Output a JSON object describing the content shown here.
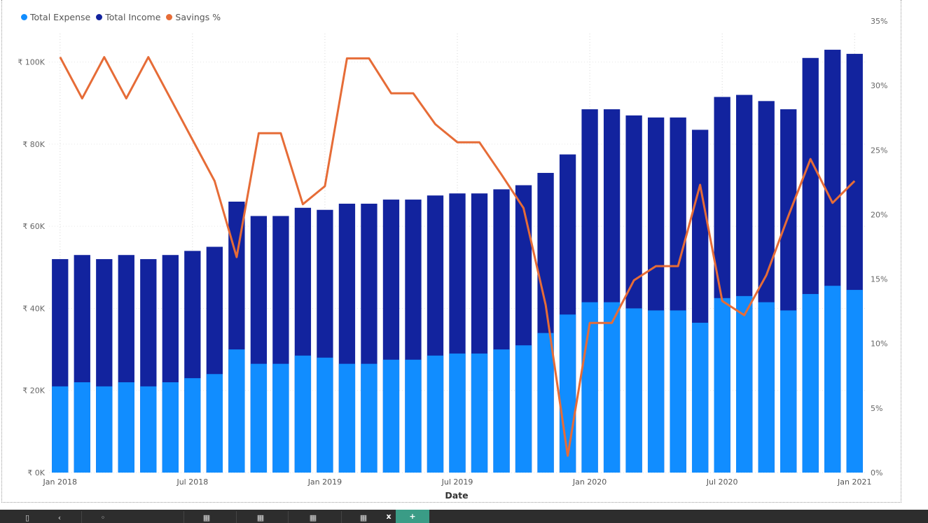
{
  "legend": {
    "items": [
      {
        "label": "Total Expense",
        "color": "#118dff"
      },
      {
        "label": "Total Income",
        "color": "#12239e"
      },
      {
        "label": "Savings %",
        "color": "#e66c37"
      }
    ]
  },
  "chart_data": {
    "type": "bar",
    "subtype": "overlapping-columns-with-line",
    "xlabel": "Date",
    "categories": [
      "2018-01",
      "2018-02",
      "2018-03",
      "2018-04",
      "2018-05",
      "2018-06",
      "2018-07",
      "2018-08",
      "2018-09",
      "2018-10",
      "2018-11",
      "2018-12",
      "2019-01",
      "2019-02",
      "2019-03",
      "2019-04",
      "2019-05",
      "2019-06",
      "2019-07",
      "2019-08",
      "2019-09",
      "2019-10",
      "2019-11",
      "2019-12",
      "2020-01",
      "2020-02",
      "2020-03",
      "2020-04",
      "2020-05",
      "2020-06",
      "2020-07",
      "2020-08",
      "2020-09",
      "2020-10",
      "2020-11",
      "2020-12",
      "2021-01"
    ],
    "x_tick_labels": [
      {
        "index": 0,
        "label": "Jan 2018"
      },
      {
        "index": 6,
        "label": "Jul 2018"
      },
      {
        "index": 12,
        "label": "Jan 2019"
      },
      {
        "index": 18,
        "label": "Jul 2019"
      },
      {
        "index": 24,
        "label": "Jan 2020"
      },
      {
        "index": 30,
        "label": "Jul 2020"
      },
      {
        "index": 36,
        "label": "Jan 2021"
      }
    ],
    "y_left": {
      "ylim": [
        0,
        110000
      ],
      "ticks": [
        0,
        20000,
        40000,
        60000,
        80000,
        100000
      ],
      "tick_labels": [
        "₹ 0K",
        "₹ 20K",
        "₹ 40K",
        "₹ 60K",
        "₹ 80K",
        "₹ 100K"
      ]
    },
    "y_right": {
      "ylim": [
        0,
        35
      ],
      "ticks": [
        0,
        5,
        10,
        15,
        20,
        25,
        30,
        35
      ],
      "tick_labels": [
        "0%",
        "5%",
        "10%",
        "15%",
        "20%",
        "25%",
        "30%",
        "35%"
      ]
    },
    "grid": true,
    "legend_position": "top-left",
    "series": [
      {
        "name": "Total Income",
        "axis": "left",
        "kind": "bar",
        "color": "#12239e",
        "values": [
          52000,
          53000,
          52000,
          53000,
          52000,
          53000,
          54000,
          55000,
          66000,
          62500,
          62500,
          64500,
          64000,
          65500,
          65500,
          66500,
          66500,
          67500,
          68000,
          68000,
          69000,
          70000,
          73000,
          77500,
          88500,
          88500,
          87000,
          86500,
          86500,
          83500,
          91500,
          92000,
          90500,
          88500,
          101000,
          103000,
          102000
        ]
      },
      {
        "name": "Total Expense",
        "axis": "left",
        "kind": "bar",
        "color": "#118dff",
        "values": [
          21000,
          22000,
          21000,
          22000,
          21000,
          22000,
          23000,
          24000,
          30000,
          26500,
          26500,
          28500,
          28000,
          26500,
          26500,
          27500,
          27500,
          28500,
          29000,
          29000,
          30000,
          31000,
          34000,
          38500,
          41500,
          41500,
          40000,
          39500,
          39500,
          36500,
          42500,
          43000,
          41500,
          39500,
          43500,
          45500,
          44500
        ]
      },
      {
        "name": "Savings %",
        "axis": "right",
        "kind": "line",
        "color": "#e66c37",
        "values": [
          32.2,
          29.0,
          32.2,
          29.0,
          32.2,
          29.0,
          25.8,
          22.6,
          16.7,
          26.3,
          26.3,
          20.8,
          22.2,
          32.1,
          32.1,
          29.4,
          29.4,
          27.0,
          25.6,
          25.6,
          23.1,
          20.5,
          13.0,
          1.3,
          11.6,
          11.6,
          14.9,
          16.0,
          16.0,
          22.3,
          13.3,
          12.2,
          15.3,
          19.9,
          24.3,
          20.9,
          22.6
        ]
      }
    ]
  },
  "taskbar": {
    "close_label": "x",
    "add_label": "+"
  }
}
